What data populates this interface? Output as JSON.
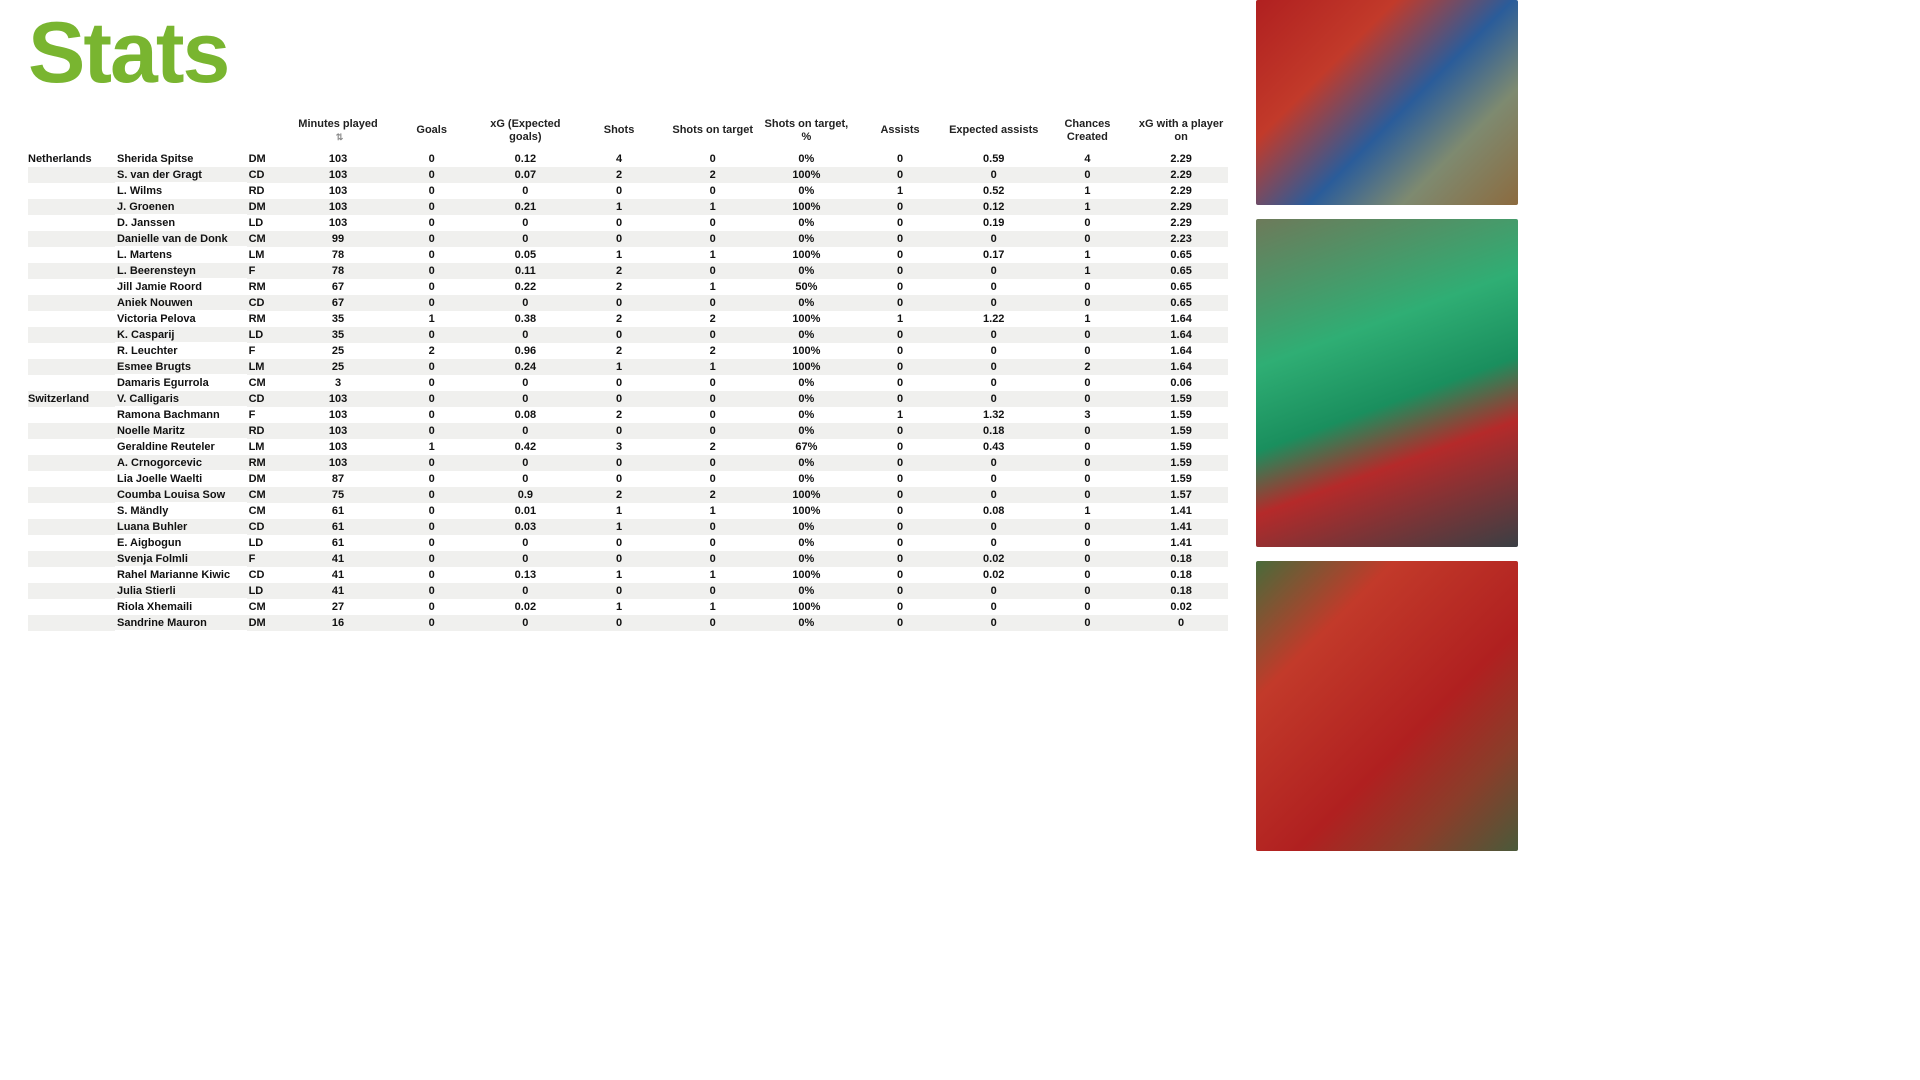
{
  "title": "Stats",
  "title_color": "#79b530",
  "columns": [
    {
      "key": "minutes",
      "label": "Minutes played",
      "sortable": true
    },
    {
      "key": "goals",
      "label": "Goals"
    },
    {
      "key": "xg",
      "label": "xG (Expected goals)"
    },
    {
      "key": "shots",
      "label": "Shots"
    },
    {
      "key": "sot",
      "label": "Shots on target"
    },
    {
      "key": "sotp",
      "label": "Shots on target, %"
    },
    {
      "key": "ast",
      "label": "Assists"
    },
    {
      "key": "xa",
      "label": "Expected assists"
    },
    {
      "key": "cc",
      "label": "Chances Created"
    },
    {
      "key": "xgp",
      "label": "xG with a player on"
    }
  ],
  "teams": [
    {
      "name": "Netherlands",
      "players": [
        {
          "name": "Sherida Spitse",
          "pos": "DM",
          "minutes": "103",
          "goals": "0",
          "xg": "0.12",
          "shots": "4",
          "sot": "0",
          "sotp": "0%",
          "ast": "0",
          "xa": "0.59",
          "cc": "4",
          "xgp": "2.29"
        },
        {
          "name": "S. van der Gragt",
          "pos": "CD",
          "minutes": "103",
          "goals": "0",
          "xg": "0.07",
          "shots": "2",
          "sot": "2",
          "sotp": "100%",
          "ast": "0",
          "xa": "0",
          "cc": "0",
          "xgp": "2.29"
        },
        {
          "name": "L. Wilms",
          "pos": "RD",
          "minutes": "103",
          "goals": "0",
          "xg": "0",
          "shots": "0",
          "sot": "0",
          "sotp": "0%",
          "ast": "1",
          "xa": "0.52",
          "cc": "1",
          "xgp": "2.29"
        },
        {
          "name": "J. Groenen",
          "pos": "DM",
          "minutes": "103",
          "goals": "0",
          "xg": "0.21",
          "shots": "1",
          "sot": "1",
          "sotp": "100%",
          "ast": "0",
          "xa": "0.12",
          "cc": "1",
          "xgp": "2.29"
        },
        {
          "name": "D. Janssen",
          "pos": "LD",
          "minutes": "103",
          "goals": "0",
          "xg": "0",
          "shots": "0",
          "sot": "0",
          "sotp": "0%",
          "ast": "0",
          "xa": "0.19",
          "cc": "0",
          "xgp": "2.29"
        },
        {
          "name": "Danielle van de Donk",
          "pos": "CM",
          "minutes": "99",
          "goals": "0",
          "xg": "0",
          "shots": "0",
          "sot": "0",
          "sotp": "0%",
          "ast": "0",
          "xa": "0",
          "cc": "0",
          "xgp": "2.23"
        },
        {
          "name": "L. Martens",
          "pos": "LM",
          "minutes": "78",
          "goals": "0",
          "xg": "0.05",
          "shots": "1",
          "sot": "1",
          "sotp": "100%",
          "ast": "0",
          "xa": "0.17",
          "cc": "1",
          "xgp": "0.65"
        },
        {
          "name": "L. Beerensteyn",
          "pos": "F",
          "minutes": "78",
          "goals": "0",
          "xg": "0.11",
          "shots": "2",
          "sot": "0",
          "sotp": "0%",
          "ast": "0",
          "xa": "0",
          "cc": "1",
          "xgp": "0.65"
        },
        {
          "name": "Jill Jamie Roord",
          "pos": "RM",
          "minutes": "67",
          "goals": "0",
          "xg": "0.22",
          "shots": "2",
          "sot": "1",
          "sotp": "50%",
          "ast": "0",
          "xa": "0",
          "cc": "0",
          "xgp": "0.65"
        },
        {
          "name": "Aniek Nouwen",
          "pos": "CD",
          "minutes": "67",
          "goals": "0",
          "xg": "0",
          "shots": "0",
          "sot": "0",
          "sotp": "0%",
          "ast": "0",
          "xa": "0",
          "cc": "0",
          "xgp": "0.65"
        },
        {
          "name": "Victoria Pelova",
          "pos": "RM",
          "minutes": "35",
          "goals": "1",
          "xg": "0.38",
          "shots": "2",
          "sot": "2",
          "sotp": "100%",
          "ast": "1",
          "xa": "1.22",
          "cc": "1",
          "xgp": "1.64"
        },
        {
          "name": "K. Casparij",
          "pos": "LD",
          "minutes": "35",
          "goals": "0",
          "xg": "0",
          "shots": "0",
          "sot": "0",
          "sotp": "0%",
          "ast": "0",
          "xa": "0",
          "cc": "0",
          "xgp": "1.64"
        },
        {
          "name": "R. Leuchter",
          "pos": "F",
          "minutes": "25",
          "goals": "2",
          "xg": "0.96",
          "shots": "2",
          "sot": "2",
          "sotp": "100%",
          "ast": "0",
          "xa": "0",
          "cc": "0",
          "xgp": "1.64"
        },
        {
          "name": "Esmee Brugts",
          "pos": "LM",
          "minutes": "25",
          "goals": "0",
          "xg": "0.24",
          "shots": "1",
          "sot": "1",
          "sotp": "100%",
          "ast": "0",
          "xa": "0",
          "cc": "2",
          "xgp": "1.64"
        },
        {
          "name": "Damaris Egurrola",
          "pos": "CM",
          "minutes": "3",
          "goals": "0",
          "xg": "0",
          "shots": "0",
          "sot": "0",
          "sotp": "0%",
          "ast": "0",
          "xa": "0",
          "cc": "0",
          "xgp": "0.06"
        }
      ]
    },
    {
      "name": "Switzerland",
      "players": [
        {
          "name": "V. Calligaris",
          "pos": "CD",
          "minutes": "103",
          "goals": "0",
          "xg": "0",
          "shots": "0",
          "sot": "0",
          "sotp": "0%",
          "ast": "0",
          "xa": "0",
          "cc": "0",
          "xgp": "1.59"
        },
        {
          "name": "Ramona Bachmann",
          "pos": "F",
          "minutes": "103",
          "goals": "0",
          "xg": "0.08",
          "shots": "2",
          "sot": "0",
          "sotp": "0%",
          "ast": "1",
          "xa": "1.32",
          "cc": "3",
          "xgp": "1.59"
        },
        {
          "name": "Noelle Maritz",
          "pos": "RD",
          "minutes": "103",
          "goals": "0",
          "xg": "0",
          "shots": "0",
          "sot": "0",
          "sotp": "0%",
          "ast": "0",
          "xa": "0.18",
          "cc": "0",
          "xgp": "1.59"
        },
        {
          "name": "Geraldine Reuteler",
          "pos": "LM",
          "minutes": "103",
          "goals": "1",
          "xg": "0.42",
          "shots": "3",
          "sot": "2",
          "sotp": "67%",
          "ast": "0",
          "xa": "0.43",
          "cc": "0",
          "xgp": "1.59"
        },
        {
          "name": "A. Crnogorcevic",
          "pos": "RM",
          "minutes": "103",
          "goals": "0",
          "xg": "0",
          "shots": "0",
          "sot": "0",
          "sotp": "0%",
          "ast": "0",
          "xa": "0",
          "cc": "0",
          "xgp": "1.59"
        },
        {
          "name": "Lia Joelle Waelti",
          "pos": "DM",
          "minutes": "87",
          "goals": "0",
          "xg": "0",
          "shots": "0",
          "sot": "0",
          "sotp": "0%",
          "ast": "0",
          "xa": "0",
          "cc": "0",
          "xgp": "1.59"
        },
        {
          "name": "Coumba Louisa Sow",
          "pos": "CM",
          "minutes": "75",
          "goals": "0",
          "xg": "0.9",
          "shots": "2",
          "sot": "2",
          "sotp": "100%",
          "ast": "0",
          "xa": "0",
          "cc": "0",
          "xgp": "1.57"
        },
        {
          "name": "S. Mändly",
          "pos": "CM",
          "minutes": "61",
          "goals": "0",
          "xg": "0.01",
          "shots": "1",
          "sot": "1",
          "sotp": "100%",
          "ast": "0",
          "xa": "0.08",
          "cc": "1",
          "xgp": "1.41"
        },
        {
          "name": "Luana Buhler",
          "pos": "CD",
          "minutes": "61",
          "goals": "0",
          "xg": "0.03",
          "shots": "1",
          "sot": "0",
          "sotp": "0%",
          "ast": "0",
          "xa": "0",
          "cc": "0",
          "xgp": "1.41"
        },
        {
          "name": "E. Aigbogun",
          "pos": "LD",
          "minutes": "61",
          "goals": "0",
          "xg": "0",
          "shots": "0",
          "sot": "0",
          "sotp": "0%",
          "ast": "0",
          "xa": "0",
          "cc": "0",
          "xgp": "1.41"
        },
        {
          "name": "Svenja Folmli",
          "pos": "F",
          "minutes": "41",
          "goals": "0",
          "xg": "0",
          "shots": "0",
          "sot": "0",
          "sotp": "0%",
          "ast": "0",
          "xa": "0.02",
          "cc": "0",
          "xgp": "0.18"
        },
        {
          "name": "Rahel Marianne Kiwic",
          "pos": "CD",
          "minutes": "41",
          "goals": "0",
          "xg": "0.13",
          "shots": "1",
          "sot": "1",
          "sotp": "100%",
          "ast": "0",
          "xa": "0.02",
          "cc": "0",
          "xgp": "0.18"
        },
        {
          "name": "Julia Stierli",
          "pos": "LD",
          "minutes": "41",
          "goals": "0",
          "xg": "0",
          "shots": "0",
          "sot": "0",
          "sotp": "0%",
          "ast": "0",
          "xa": "0",
          "cc": "0",
          "xgp": "0.18"
        },
        {
          "name": "Riola Xhemaili",
          "pos": "CM",
          "minutes": "27",
          "goals": "0",
          "xg": "0.02",
          "shots": "1",
          "sot": "1",
          "sotp": "100%",
          "ast": "0",
          "xa": "0",
          "cc": "0",
          "xgp": "0.02"
        },
        {
          "name": "Sandrine Mauron",
          "pos": "DM",
          "minutes": "16",
          "goals": "0",
          "xg": "0",
          "shots": "0",
          "sot": "0",
          "sotp": "0%",
          "ast": "0",
          "xa": "0",
          "cc": "0",
          "xgp": "0"
        }
      ]
    }
  ],
  "row_alt_bg": "#f0f0ee",
  "sort_icon_glyph": "⇅"
}
